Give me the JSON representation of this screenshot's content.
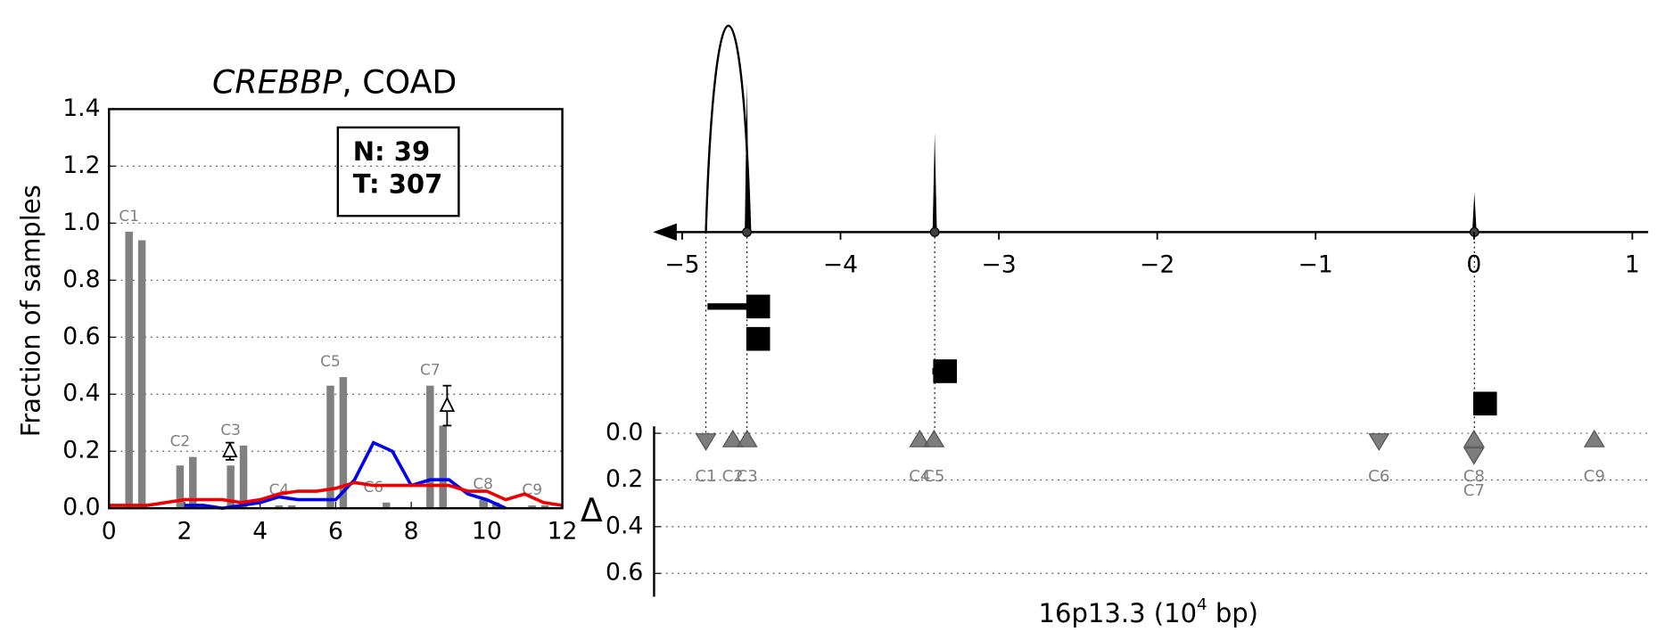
{
  "chart_data": [
    {
      "type": "bar",
      "title": [
        "CREBBP",
        ", COAD"
      ],
      "ylabel": "Fraction of samples",
      "annotation": [
        "N: 39",
        "T: 307"
      ],
      "xlim": [
        0,
        12
      ],
      "xticks": [
        0,
        2,
        4,
        6,
        8,
        10,
        12
      ],
      "ylim": [
        0,
        1.4
      ],
      "yticks": [
        {
          "value": 0,
          "label": "0.0"
        },
        {
          "value": 0.2,
          "label": "0.2"
        },
        {
          "value": 0.4,
          "label": "0.4"
        },
        {
          "value": 0.6,
          "label": "0.6"
        },
        {
          "value": 0.8,
          "label": "0.8"
        },
        {
          "value": 1.0,
          "label": "1.0"
        },
        {
          "value": 1.2,
          "label": "1.2"
        },
        {
          "value": 1.4,
          "label": "1.4"
        }
      ],
      "grid": true,
      "bar_color": "#808080",
      "groups": [
        {
          "label": "C1",
          "x": [
            0.53,
            0.87
          ],
          "values": [
            0.97,
            0.94
          ]
        },
        {
          "label": "C2",
          "x": [
            1.88,
            2.22
          ],
          "values": [
            0.15,
            0.18
          ]
        },
        {
          "label": "C3",
          "x": [
            3.22,
            3.56
          ],
          "values": [
            0.15,
            0.22
          ]
        },
        {
          "label": "C4",
          "x": [
            4.5,
            4.84
          ],
          "values": [
            0.01,
            0.01
          ]
        },
        {
          "label": "C5",
          "x": [
            5.86,
            6.2
          ],
          "values": [
            0.43,
            0.46
          ]
        },
        {
          "label": "C6",
          "x": [
            7.0,
            7.34
          ],
          "values": [
            0.0,
            0.02
          ]
        },
        {
          "label": "C7",
          "x": [
            8.5,
            8.84
          ],
          "values": [
            0.43,
            0.29
          ]
        },
        {
          "label": "C8",
          "x": [
            9.9,
            10.24
          ],
          "values": [
            0.03,
            0.02
          ]
        },
        {
          "label": "C9",
          "x": [
            11.2,
            11.54
          ],
          "values": [
            0.01,
            0.01
          ]
        }
      ],
      "deltas": [
        {
          "x": 3.2,
          "value": 0.2,
          "error": 0.03
        },
        {
          "x": 8.95,
          "value": 0.36,
          "error": 0.07
        }
      ],
      "x": [
        0,
        0.5,
        1,
        1.5,
        2,
        2.5,
        3,
        3.5,
        4,
        4.5,
        5,
        5.5,
        6,
        6.5,
        7,
        7.5,
        8,
        8.5,
        9,
        9.5,
        10,
        10.5,
        11,
        11.5,
        12
      ],
      "series": [
        {
          "color": "#0000ee",
          "values": [
            null,
            null,
            null,
            null,
            0.01,
            0.01,
            0.0,
            0.01,
            0.02,
            0.04,
            0.03,
            0.03,
            0.03,
            0.1,
            0.23,
            0.2,
            0.08,
            0.1,
            0.1,
            0.05,
            0.03,
            0.0,
            null,
            null,
            null
          ]
        },
        {
          "color": "#ee0000",
          "values": [
            0.01,
            0.01,
            0.01,
            0.02,
            0.03,
            0.03,
            0.03,
            0.02,
            0.03,
            0.05,
            0.06,
            0.06,
            0.07,
            0.09,
            0.08,
            0.08,
            0.08,
            0.08,
            0.08,
            0.06,
            0.06,
            0.03,
            0.05,
            0.02,
            0.01
          ]
        }
      ]
    },
    {
      "type": "track",
      "xlabel": [
        "16p13.3 (10",
        "4",
        " bp)"
      ],
      "ylabel": "Δ",
      "xlim": [
        -5.15,
        1.1
      ],
      "xticks": [
        {
          "value": -5,
          "label": "−5"
        },
        {
          "value": -4,
          "label": "−4"
        },
        {
          "value": -3,
          "label": "−3"
        },
        {
          "value": -2,
          "label": "−2"
        },
        {
          "value": -1,
          "label": "−1"
        },
        0,
        1
      ],
      "ylim": [
        -0.03,
        0.7
      ],
      "yticks": [
        {
          "value": 0,
          "label": "0.0"
        },
        {
          "value": 0.2,
          "label": "0.2"
        },
        {
          "value": 0.4,
          "label": "0.4"
        },
        {
          "value": 0.6,
          "label": "0.6"
        }
      ],
      "grid": true,
      "squares": [
        {
          "x": -4.52,
          "left": -4.84
        },
        {
          "x": -4.52,
          "left": -4.54
        },
        {
          "x": -3.34,
          "left": -3.42
        },
        {
          "x": 0.07,
          "left": 0.05
        }
      ],
      "points": [
        {
          "label": "C1",
          "x": -4.85,
          "y": 0.03,
          "dir": "down"
        },
        {
          "label": "C2",
          "x": -4.68,
          "y": 0.03,
          "dir": "up"
        },
        {
          "label": "C3",
          "x": -4.59,
          "y": 0.03,
          "dir": "up"
        },
        {
          "label": "C4",
          "x": -3.5,
          "y": 0.03,
          "dir": "up"
        },
        {
          "label": "C5",
          "x": -3.41,
          "y": 0.03,
          "dir": "up"
        },
        {
          "label": "C6",
          "x": -0.6,
          "y": 0.03,
          "dir": "down"
        },
        {
          "label": "C7",
          "x": 0.0,
          "y": 0.09,
          "dir": "down"
        },
        {
          "label": "C8",
          "x": 0.0,
          "y": 0.03,
          "dir": "up"
        },
        {
          "label": "C9",
          "x": 0.76,
          "y": 0.03,
          "dir": "up"
        }
      ]
    }
  ]
}
